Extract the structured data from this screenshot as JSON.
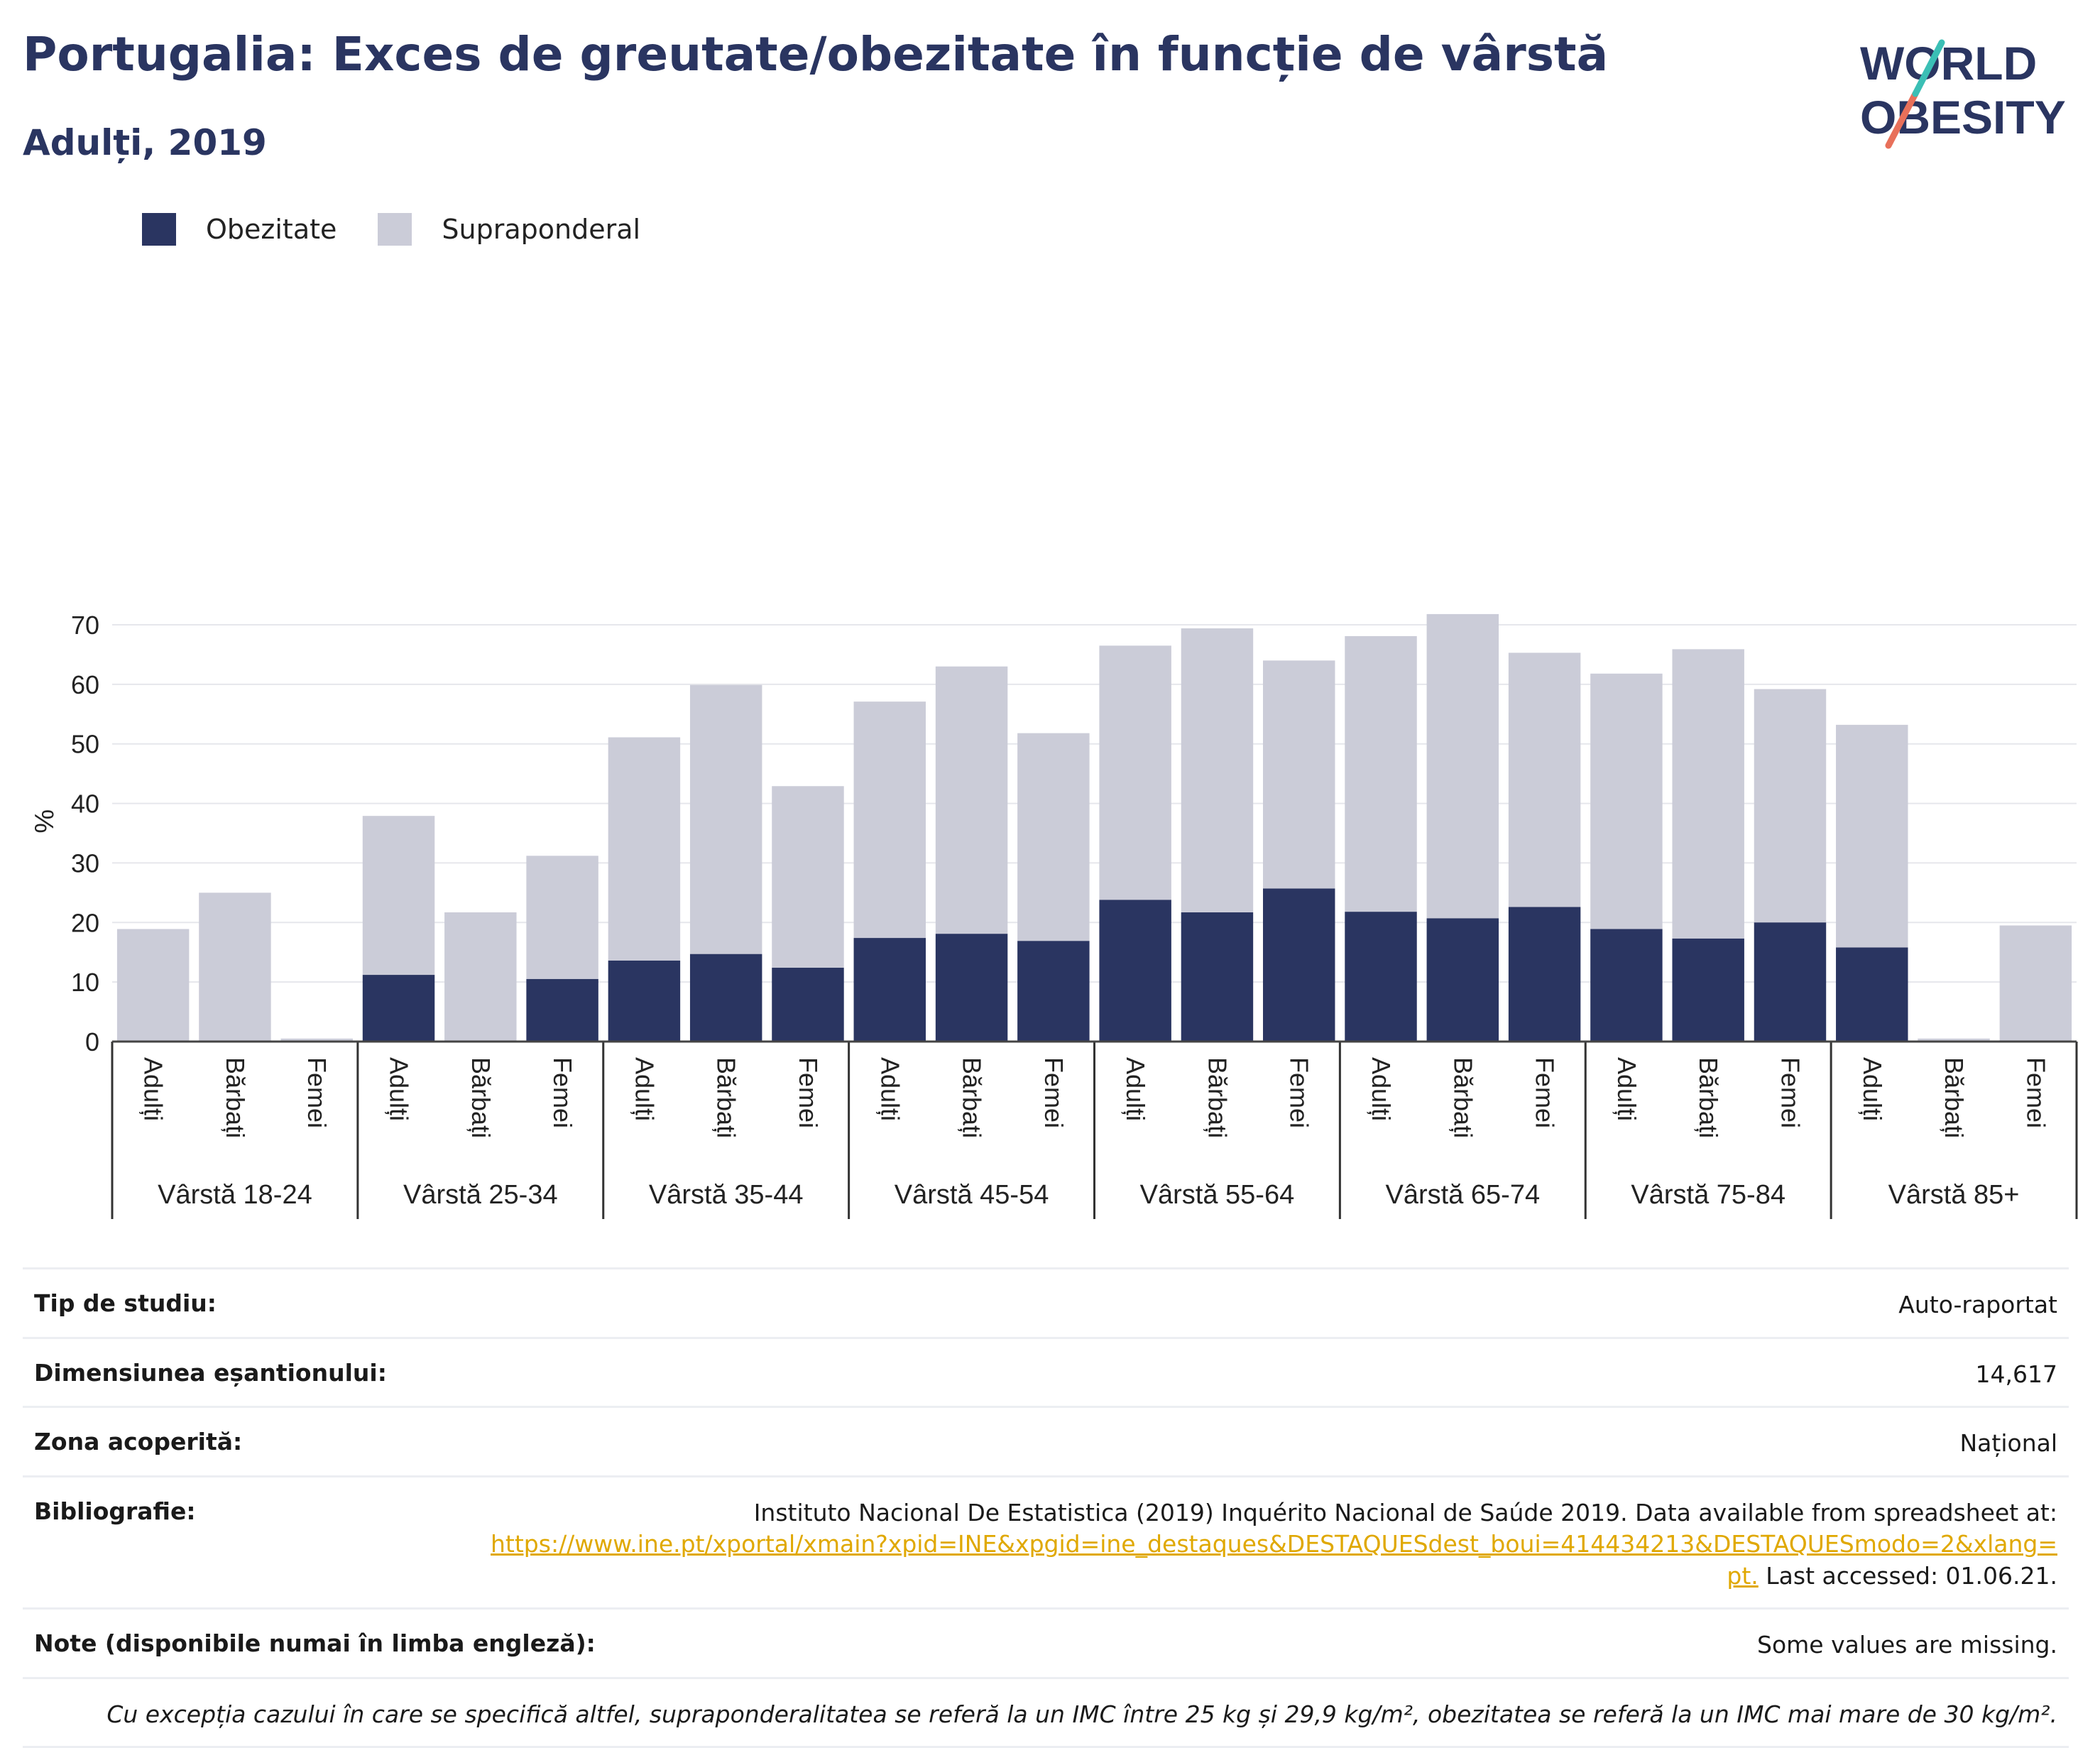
{
  "title": "Portugalia: Exces de greutate/obezitate în funcție de vârstă",
  "subtitle": "Adulți, 2019",
  "logo": {
    "line1": "WORLD",
    "line2": "OBESITY"
  },
  "colors": {
    "obezitate": "#2a3561",
    "supraponderal": "#cbccd8",
    "title": "#2a3561",
    "link": "#e0a800"
  },
  "legend": [
    {
      "label": "Obezitate",
      "color": "#2a3561"
    },
    {
      "label": "Supraponderal",
      "color": "#cbccd8"
    }
  ],
  "chart_data": {
    "type": "bar",
    "stacked": true,
    "ylabel": "%",
    "ylim": [
      0,
      75
    ],
    "yticks": [
      0,
      10,
      20,
      30,
      40,
      50,
      60,
      70
    ],
    "grid": true,
    "groups": [
      {
        "label": "Vârstă 18-24",
        "categories": [
          "Adulți",
          "Bărbați",
          "Femei"
        ]
      },
      {
        "label": "Vârstă 25-34",
        "categories": [
          "Adulți",
          "Bărbați",
          "Femei"
        ]
      },
      {
        "label": "Vârstă 35-44",
        "categories": [
          "Adulți",
          "Bărbați",
          "Femei"
        ]
      },
      {
        "label": "Vârstă 45-54",
        "categories": [
          "Adulți",
          "Bărbați",
          "Femei"
        ]
      },
      {
        "label": "Vârstă 55-64",
        "categories": [
          "Adulți",
          "Bărbați",
          "Femei"
        ]
      },
      {
        "label": "Vârstă 65-74",
        "categories": [
          "Adulți",
          "Bărbați",
          "Femei"
        ]
      },
      {
        "label": "Vârstă 75-84",
        "categories": [
          "Adulți",
          "Bărbați",
          "Femei"
        ]
      },
      {
        "label": "Vârstă 85+",
        "categories": [
          "Adulți",
          "Bărbați",
          "Femei"
        ]
      }
    ],
    "series": [
      {
        "name": "Obezitate",
        "values": [
          0,
          0,
          0,
          11.2,
          0,
          10.5,
          13.6,
          14.7,
          12.4,
          17.4,
          18.1,
          16.9,
          23.8,
          21.7,
          25.7,
          21.8,
          20.7,
          22.6,
          18.9,
          17.3,
          20.0,
          15.8,
          0,
          0
        ]
      },
      {
        "name": "Supraponderal",
        "values": [
          18.9,
          25.0,
          0.5,
          26.7,
          21.7,
          20.7,
          37.5,
          45.2,
          30.5,
          39.7,
          44.9,
          34.9,
          42.7,
          47.7,
          38.3,
          46.3,
          51.1,
          42.7,
          42.9,
          48.6,
          39.2,
          37.4,
          0.5,
          19.5
        ]
      }
    ]
  },
  "info": {
    "study_type": {
      "label": "Tip de studiu:",
      "value": "Auto-raportat"
    },
    "sample_size": {
      "label": "Dimensiunea eșantionului:",
      "value": "14,617"
    },
    "coverage": {
      "label": "Zona acoperită:",
      "value": "Național"
    },
    "bibliography": {
      "label": "Bibliografie:",
      "text": "Instituto Nacional De Estatistica (2019) Inquérito Nacional de Saúde 2019. Data available from spreadsheet at:",
      "link_line1": "https://www.ine.pt/xportal/xmain?xpid=INE&xpgid=ine_destaques&DESTAQUESdest_boui=414434213&DESTAQUESmodo=2&xlang=",
      "link_line2": "pt.",
      "accessed": " Last accessed: 01.06.21."
    },
    "notes": {
      "label": "Note (disponibile numai în limba engleză):",
      "value": "Some values are missing."
    },
    "footnote": "Cu excepția cazului în care se specifică altfel, supraponderalitatea se referă la un IMC între 25 kg și 29,9 kg/m², obezitatea se referă la un IMC mai mare de 30 kg/m²."
  }
}
